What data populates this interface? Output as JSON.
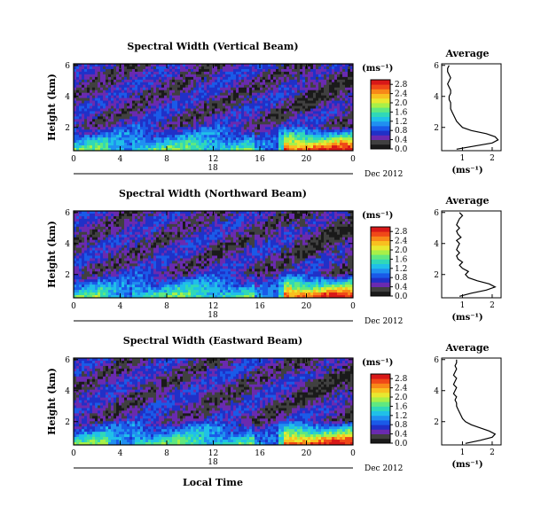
{
  "chart_data": {
    "type": "heatmap",
    "common": {
      "x_ticks": [
        "0",
        "4",
        "8",
        "12",
        "16",
        "20",
        "0"
      ],
      "x_range": [
        0,
        24
      ],
      "date_label": "Dec 2012",
      "date_marker": "18",
      "xlabel": "Local Time",
      "ylabel": "Height (km)",
      "y_ticks": [
        "2",
        "4",
        "6"
      ],
      "y_range": [
        0.5,
        6.1
      ],
      "colorbar_unit": "(ms⁻¹)",
      "colormap": [
        "#1a1a1a",
        "#404040",
        "#6a2ab0",
        "#2030c8",
        "#1a5ae8",
        "#2090f0",
        "#20c0e8",
        "#30d8b8",
        "#60e880",
        "#a8f048",
        "#e8e830",
        "#f8c020",
        "#f88818",
        "#f04818",
        "#d81818"
      ],
      "average_title": "Average",
      "average_unit": "(ms⁻¹)",
      "average_y_ticks": [
        "2",
        "4",
        "6"
      ]
    },
    "panels": [
      {
        "title": "Spectral Width (Vertical Beam)",
        "colorbar_ticks": [
          "0.0",
          "0.4",
          "0.8",
          "1.2",
          "1.6",
          "2.0",
          "2.4",
          "2.8"
        ],
        "colorbar_range": [
          0,
          3.0
        ],
        "avg_ticks": [
          "1",
          "2"
        ],
        "avg_xrange": [
          0.3,
          2.3
        ],
        "avg_profile": {
          "heights": [
            0.6,
            0.8,
            1.0,
            1.2,
            1.4,
            1.6,
            1.8,
            2.0,
            2.2,
            2.4,
            2.6,
            2.8,
            3.0,
            3.2,
            3.4,
            3.6,
            3.8,
            4.0,
            4.2,
            4.4,
            4.6,
            4.8,
            5.0,
            5.2,
            5.4,
            5.6,
            5.8,
            6.0
          ],
          "values": [
            0.8,
            1.4,
            2.0,
            2.2,
            2.1,
            1.8,
            1.3,
            1.0,
            0.9,
            0.8,
            0.75,
            0.7,
            0.65,
            0.6,
            0.6,
            0.6,
            0.55,
            0.55,
            0.6,
            0.6,
            0.55,
            0.5,
            0.55,
            0.6,
            0.55,
            0.5,
            0.5,
            0.55
          ]
        }
      },
      {
        "title": "Spectral Width (Northward Beam)",
        "colorbar_ticks": [
          "0.0",
          "0.4",
          "0.8",
          "1.2",
          "1.6",
          "2.0",
          "2.4",
          "2.8"
        ],
        "colorbar_range": [
          0,
          3.0
        ],
        "avg_ticks": [
          "1",
          "2"
        ],
        "avg_xrange": [
          0.3,
          2.3
        ],
        "avg_profile": {
          "heights": [
            0.6,
            0.8,
            1.0,
            1.2,
            1.4,
            1.6,
            1.8,
            2.0,
            2.2,
            2.4,
            2.6,
            2.8,
            3.0,
            3.2,
            3.4,
            3.6,
            3.8,
            4.0,
            4.2,
            4.4,
            4.6,
            4.8,
            5.0,
            5.2,
            5.4,
            5.6,
            5.8,
            6.0
          ],
          "values": [
            0.9,
            1.3,
            1.8,
            2.1,
            1.9,
            1.5,
            1.2,
            1.1,
            1.2,
            1.0,
            0.9,
            1.0,
            0.85,
            0.8,
            0.9,
            0.8,
            0.85,
            0.9,
            0.8,
            0.95,
            0.85,
            0.8,
            0.9,
            0.8,
            0.85,
            0.9,
            1.0,
            0.9
          ]
        }
      },
      {
        "title": "Spectral Width (Eastward Beam)",
        "colorbar_ticks": [
          "0.0",
          "0.4",
          "0.8",
          "1.2",
          "1.6",
          "2.0",
          "2.4",
          "2.8"
        ],
        "colorbar_range": [
          0,
          3.0
        ],
        "avg_ticks": [
          "1",
          "2"
        ],
        "avg_xrange": [
          0.3,
          2.3
        ],
        "avg_profile": {
          "heights": [
            0.6,
            0.8,
            1.0,
            1.2,
            1.4,
            1.6,
            1.8,
            2.0,
            2.2,
            2.4,
            2.6,
            2.8,
            3.0,
            3.2,
            3.4,
            3.6,
            3.8,
            4.0,
            4.2,
            4.4,
            4.6,
            4.8,
            5.0,
            5.2,
            5.4,
            5.6,
            5.8,
            6.0
          ],
          "values": [
            1.1,
            1.6,
            2.0,
            2.1,
            1.9,
            1.6,
            1.3,
            1.1,
            1.0,
            0.95,
            0.9,
            0.85,
            0.8,
            0.8,
            0.75,
            0.8,
            0.7,
            0.75,
            0.8,
            0.7,
            0.75,
            0.8,
            0.7,
            0.75,
            0.8,
            0.75,
            0.8,
            0.8
          ]
        }
      }
    ]
  }
}
